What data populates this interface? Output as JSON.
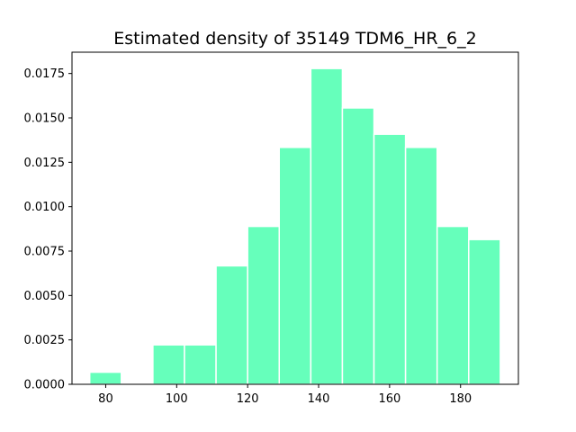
{
  "chart_data": {
    "type": "bar",
    "title": "Estimated density of 35149 TDM6_HR_6_2",
    "xlabel": "",
    "ylabel": "",
    "bin_edges": [
      75.5,
      84.4,
      93.3,
      102.2,
      111.1,
      120.0,
      128.9,
      137.8,
      146.7,
      155.6,
      164.5,
      173.4,
      182.3,
      191.2
    ],
    "values": [
      0.00068,
      0.0,
      0.00222,
      0.00222,
      0.00667,
      0.00889,
      0.01334,
      0.01778,
      0.01556,
      0.01408,
      0.01334,
      0.00889,
      0.00815
    ],
    "bar_color": "#66ffbb",
    "xlim": [
      70.5,
      196.3
    ],
    "ylim": [
      0.0,
      0.0187
    ],
    "x_ticks": [
      80,
      100,
      120,
      140,
      160,
      180
    ],
    "x_tick_labels": [
      "80",
      "100",
      "120",
      "140",
      "160",
      "180"
    ],
    "y_ticks": [
      0.0,
      0.0025,
      0.005,
      0.0075,
      0.01,
      0.0125,
      0.015,
      0.0175
    ],
    "y_tick_labels": [
      "0.0000",
      "0.0025",
      "0.0050",
      "0.0075",
      "0.0100",
      "0.0125",
      "0.0150",
      "0.0175"
    ],
    "grid": false,
    "legend": "none"
  }
}
